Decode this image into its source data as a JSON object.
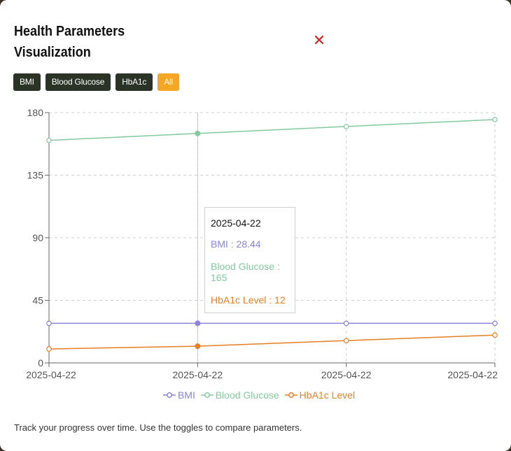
{
  "modal": {
    "title": "Health Parameters Visualization",
    "close_icon": "close-icon",
    "footer_text": "Track your progress over time. Use the toggles to compare parameters."
  },
  "toggles": [
    {
      "label": "BMI",
      "active": false
    },
    {
      "label": "Blood Glucose",
      "active": false
    },
    {
      "label": "HbA1c",
      "active": false
    },
    {
      "label": "All",
      "active": true
    }
  ],
  "colors": {
    "bmi": "#8884d8",
    "glucose": "#82ca9d",
    "hba1c": "#e67e22",
    "toggle_bg": "#2b3327",
    "toggle_active": "#f5a623",
    "close": "#c62828"
  },
  "tooltip": {
    "date": "2025-04-22",
    "rows": [
      {
        "key": "bmi",
        "text": "BMI : 28.44"
      },
      {
        "key": "glucose",
        "text": "Blood Glucose : 165"
      },
      {
        "key": "hba1c",
        "text": "HbA1c Level : 12"
      }
    ]
  },
  "chart_data": {
    "type": "line",
    "x": [
      "2025-04-22",
      "2025-04-22",
      "2025-04-22",
      "2025-04-22"
    ],
    "ylim": [
      0,
      180
    ],
    "yticks": [
      0,
      45,
      90,
      135,
      180
    ],
    "grid": true,
    "legend": "bottom",
    "active_index": 1,
    "series": [
      {
        "key": "bmi",
        "name": "BMI",
        "values": [
          28.44,
          28.44,
          28.44,
          28.44
        ]
      },
      {
        "key": "glucose",
        "name": "Blood Glucose",
        "values": [
          160,
          165,
          170,
          175
        ]
      },
      {
        "key": "hba1c",
        "name": "HbA1c Level",
        "values": [
          10,
          12,
          16,
          20
        ]
      }
    ]
  }
}
